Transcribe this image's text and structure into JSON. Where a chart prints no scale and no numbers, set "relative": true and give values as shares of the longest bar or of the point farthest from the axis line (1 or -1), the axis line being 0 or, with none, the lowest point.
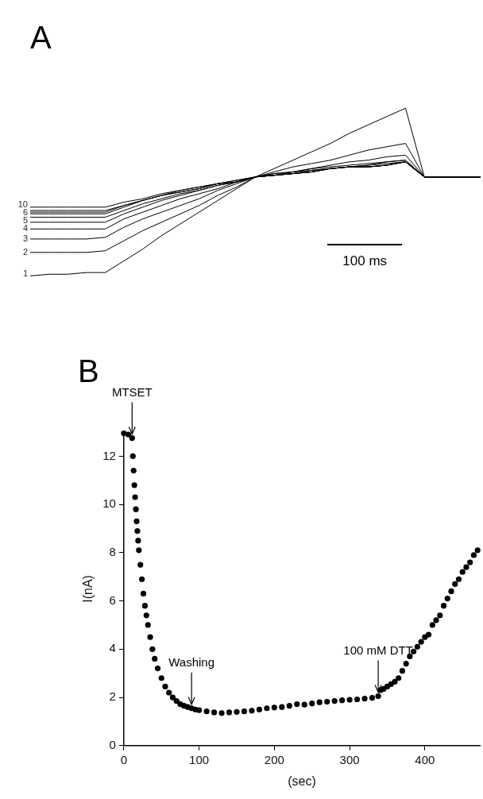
{
  "chart_data": [
    {
      "type": "line",
      "title": "A",
      "relative": true,
      "grid": false,
      "legend": false,
      "marker": "none",
      "line_style": "solid",
      "annotations": [
        "100 ms"
      ],
      "categories": [
        null,
        null,
        null,
        null,
        null,
        null,
        null,
        null,
        null,
        null,
        null,
        null,
        null,
        null,
        null,
        null,
        null,
        null,
        null,
        null,
        null,
        null,
        null,
        null,
        null
      ],
      "series": [
        {
          "name": "1",
          "color": "#000000",
          "values": [
            0,
            0.01,
            0.01,
            0.02,
            0.02,
            0.09,
            0.16,
            0.24,
            0.31,
            0.38,
            0.45,
            0.52,
            0.59,
            0.64,
            0.69,
            0.74,
            0.79,
            0.85,
            0.9,
            0.95,
            1.0,
            0.59,
            0.59,
            0.59,
            0.59
          ]
        },
        {
          "name": "2",
          "color": "#000000",
          "values": [
            0.14,
            0.14,
            0.14,
            0.14,
            0.15,
            0.21,
            0.27,
            0.32,
            0.37,
            0.42,
            0.48,
            0.53,
            0.59,
            0.62,
            0.65,
            0.67,
            0.69,
            0.72,
            0.75,
            0.77,
            0.79,
            0.59,
            0.59,
            0.59,
            0.59
          ]
        },
        {
          "name": "3",
          "color": "#000000",
          "values": [
            0.22,
            0.22,
            0.22,
            0.22,
            0.23,
            0.29,
            0.34,
            0.38,
            0.42,
            0.46,
            0.51,
            0.55,
            0.59,
            0.61,
            0.62,
            0.64,
            0.66,
            0.68,
            0.69,
            0.71,
            0.72,
            0.59,
            0.59,
            0.59,
            0.59
          ]
        },
        {
          "name": "4",
          "color": "#000000",
          "values": [
            0.28,
            0.28,
            0.28,
            0.28,
            0.28,
            0.34,
            0.38,
            0.42,
            0.46,
            0.49,
            0.52,
            0.56,
            0.59,
            0.61,
            0.62,
            0.64,
            0.65,
            0.66,
            0.67,
            0.68,
            0.69,
            0.59,
            0.59,
            0.59,
            0.59
          ]
        },
        {
          "name": "5",
          "color": "#000000",
          "values": [
            0.32,
            0.32,
            0.32,
            0.32,
            0.32,
            0.37,
            0.41,
            0.45,
            0.48,
            0.51,
            0.54,
            0.56,
            0.59,
            0.6,
            0.62,
            0.63,
            0.64,
            0.65,
            0.66,
            0.68,
            0.69,
            0.59,
            0.59,
            0.59,
            0.59
          ]
        },
        {
          "name": "6",
          "color": "#000000",
          "values": [
            0.35,
            0.35,
            0.35,
            0.35,
            0.35,
            0.39,
            0.43,
            0.46,
            0.49,
            0.51,
            0.54,
            0.56,
            0.59,
            0.6,
            0.61,
            0.63,
            0.64,
            0.65,
            0.66,
            0.67,
            0.68,
            0.59,
            0.59,
            0.59,
            0.59
          ]
        },
        {
          "color": "#000000",
          "values": [
            0.37,
            0.37,
            0.37,
            0.37,
            0.37,
            0.41,
            0.45,
            0.48,
            0.5,
            0.52,
            0.55,
            0.56,
            0.59,
            0.6,
            0.61,
            0.62,
            0.64,
            0.65,
            0.65,
            0.66,
            0.68,
            0.59,
            0.59,
            0.59,
            0.59
          ]
        },
        {
          "color": "#000000",
          "values": [
            0.38,
            0.38,
            0.38,
            0.38,
            0.38,
            0.42,
            0.45,
            0.48,
            0.5,
            0.52,
            0.55,
            0.56,
            0.59,
            0.6,
            0.61,
            0.62,
            0.64,
            0.65,
            0.65,
            0.66,
            0.68,
            0.59,
            0.59,
            0.59,
            0.59
          ]
        },
        {
          "color": "#000000",
          "values": [
            0.39,
            0.39,
            0.39,
            0.39,
            0.39,
            0.42,
            0.45,
            0.48,
            0.51,
            0.53,
            0.55,
            0.57,
            0.59,
            0.6,
            0.61,
            0.62,
            0.64,
            0.65,
            0.65,
            0.66,
            0.68,
            0.59,
            0.59,
            0.59,
            0.59
          ]
        },
        {
          "name": "10",
          "color": "#000000",
          "values": [
            0.41,
            0.41,
            0.41,
            0.41,
            0.41,
            0.44,
            0.46,
            0.49,
            0.51,
            0.53,
            0.55,
            0.57,
            0.59,
            0.6,
            0.61,
            0.62,
            0.64,
            0.65,
            0.65,
            0.66,
            0.68,
            0.59,
            0.59,
            0.59,
            0.59
          ]
        }
      ]
    },
    {
      "type": "scatter",
      "title": "B",
      "xlabel": "(sec)",
      "ylabel": "I(nA)",
      "xlim": [
        0,
        473
      ],
      "xticks": [
        0,
        100,
        200,
        300,
        400
      ],
      "ylim": [
        0,
        13
      ],
      "yticks": [
        0,
        2,
        4,
        6,
        8,
        10,
        12
      ],
      "grid": false,
      "legend": false,
      "marker": "circle",
      "annotations": [
        {
          "text": "MTSET",
          "x": 11,
          "y": 12.75
        },
        {
          "text": "Washing",
          "x": 90,
          "y": 1.55
        },
        {
          "text": "100 mM DTT",
          "x": 338,
          "y": 2.05
        }
      ],
      "series": [
        {
          "color": "#000000",
          "x": [
            0,
            6,
            11,
            12,
            13,
            14,
            15,
            16,
            17,
            18,
            19,
            20,
            22,
            24,
            26,
            28,
            30,
            32,
            35,
            38,
            41,
            45,
            50,
            55,
            60,
            65,
            70,
            75,
            80,
            85,
            90,
            95,
            100,
            110,
            120,
            130,
            140,
            150,
            160,
            170,
            180,
            190,
            200,
            210,
            220,
            230,
            240,
            250,
            260,
            270,
            280,
            290,
            300,
            310,
            320,
            330,
            338,
            341,
            345,
            350,
            355,
            360,
            365,
            370,
            375,
            380,
            385,
            390,
            395,
            400,
            405,
            410,
            415,
            420,
            425,
            430,
            435,
            440,
            445,
            450,
            455,
            460,
            465,
            470
          ],
          "values": [
            12.95,
            12.9,
            12.75,
            12.0,
            11.4,
            10.8,
            10.3,
            9.8,
            9.3,
            8.9,
            8.5,
            8.1,
            7.5,
            6.9,
            6.3,
            5.8,
            5.4,
            5.0,
            4.5,
            4.0,
            3.6,
            3.2,
            2.8,
            2.45,
            2.2,
            2.0,
            1.85,
            1.72,
            1.65,
            1.6,
            1.55,
            1.5,
            1.47,
            1.42,
            1.38,
            1.35,
            1.38,
            1.4,
            1.42,
            1.45,
            1.5,
            1.55,
            1.58,
            1.6,
            1.65,
            1.72,
            1.7,
            1.75,
            1.8,
            1.82,
            1.85,
            1.88,
            1.9,
            1.92,
            1.95,
            1.98,
            2.05,
            2.3,
            2.35,
            2.45,
            2.55,
            2.65,
            2.8,
            3.1,
            3.4,
            3.7,
            3.9,
            4.1,
            4.3,
            4.5,
            4.6,
            5.0,
            5.2,
            5.4,
            5.8,
            6.1,
            6.4,
            6.7,
            6.9,
            7.2,
            7.4,
            7.6,
            7.9,
            8.1
          ]
        }
      ]
    }
  ]
}
